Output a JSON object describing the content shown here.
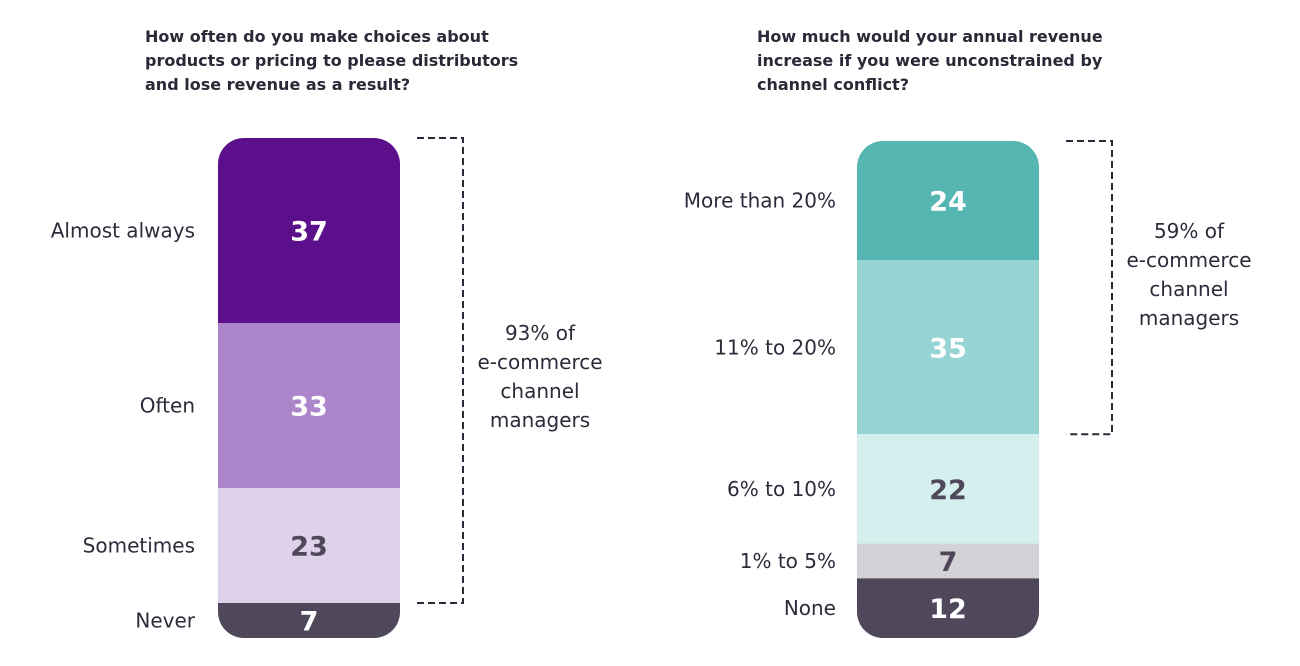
{
  "chart_data": [
    {
      "type": "bar",
      "stacked": true,
      "title": "How often do you make choices about products or pricing to please distributors and lose revenue as a result?",
      "categories": [
        "Almost always",
        "Often",
        "Sometimes",
        "Never"
      ],
      "values": [
        37,
        33,
        23,
        7
      ],
      "colors": [
        "#5c0f8b",
        "#ab84ca",
        "#e0d1ea",
        "#4f485b"
      ],
      "value_label_colors": [
        "#ffffff",
        "#ffffff",
        "#4f485b",
        "#ffffff"
      ],
      "bracket": {
        "covers_categories": [
          "Almost always",
          "Often",
          "Sometimes"
        ],
        "lines": [
          "93% of",
          "e-commerce",
          "channel",
          "managers"
        ]
      }
    },
    {
      "type": "bar",
      "stacked": true,
      "title": "How much would your annual revenue increase if you were unconstrained by channel conflict?",
      "categories": [
        "More than 20%",
        "11% to 20%",
        "6% to 10%",
        "1% to 5%",
        "None"
      ],
      "values": [
        24,
        35,
        22,
        7,
        12
      ],
      "colors": [
        "#56b6b2",
        "#97d4d4",
        "#d5eeee",
        "#d3d2d6",
        "#4f485b"
      ],
      "value_label_colors": [
        "#ffffff",
        "#ffffff",
        "#4f485b",
        "#4f485b",
        "#ffffff"
      ],
      "bracket": {
        "covers_categories": [
          "More than 20%",
          "11% to 20%"
        ],
        "lines": [
          "59% of",
          "e-commerce",
          "channel",
          "managers"
        ]
      }
    }
  ]
}
